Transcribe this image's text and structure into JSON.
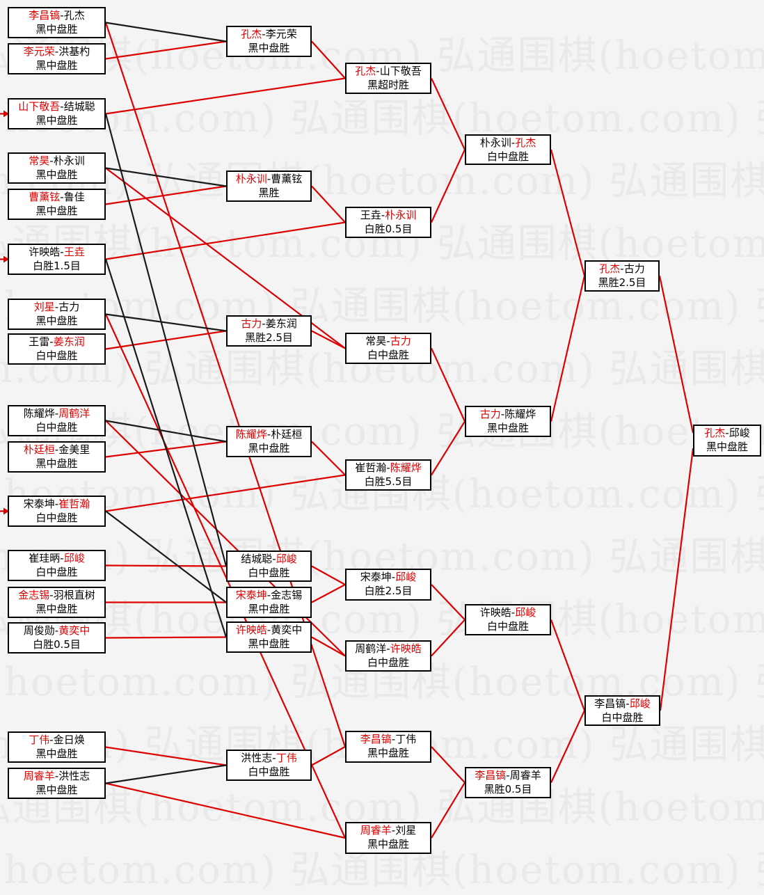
{
  "watermark": {
    "text": "弘通围棋(hoetom.com)",
    "color": "#e9e9e9"
  },
  "colors": {
    "background": "#f4f4f4",
    "winner_name": "#dd0000",
    "advance_line": "#dd0000",
    "drop_line": "#1a1a1a",
    "box_border": "#000000"
  },
  "dash": "-",
  "rounds": [
    {
      "label": "round-1",
      "count": 16
    },
    {
      "label": "round-2-deciders",
      "count": 8
    },
    {
      "label": "round-of-16",
      "count": 8
    },
    {
      "label": "quarterfinals",
      "count": 4
    },
    {
      "label": "semifinals",
      "count": 2
    },
    {
      "label": "final",
      "count": 1
    }
  ],
  "matches": [
    {
      "id": "c1m1",
      "round": 1,
      "p1": "李昌镐",
      "p2": "孔杰",
      "winner": 1,
      "result": "黑中盘胜"
    },
    {
      "id": "c1m2",
      "round": 1,
      "p1": "李元荣",
      "p2": "洪基杓",
      "winner": 1,
      "result": "黑中盘胜"
    },
    {
      "id": "c1m3",
      "round": 1,
      "p1": "山下敬吾",
      "p2": "结城聪",
      "winner": 1,
      "result": "黑中盘胜"
    },
    {
      "id": "c1m4",
      "round": 1,
      "p1": "常昊",
      "p2": "朴永训",
      "winner": 1,
      "result": "黑中盘胜"
    },
    {
      "id": "c1m5",
      "round": 1,
      "p1": "曹薰铉",
      "p2": "鲁佳",
      "winner": 1,
      "result": "黑中盘胜"
    },
    {
      "id": "c1m6",
      "round": 1,
      "p1": "许映皓",
      "p2": "王垚",
      "winner": 2,
      "result": "白胜1.5目"
    },
    {
      "id": "c1m7",
      "round": 1,
      "p1": "刘星",
      "p2": "古力",
      "winner": 1,
      "result": "黑中盘胜"
    },
    {
      "id": "c1m8",
      "round": 1,
      "p1": "王雷",
      "p2": "姜东润",
      "winner": 2,
      "result": "白中盘胜"
    },
    {
      "id": "c1m9",
      "round": 1,
      "p1": "陈耀烨",
      "p2": "周鹤洋",
      "winner": 2,
      "result": "白中盘胜"
    },
    {
      "id": "c1m10",
      "round": 1,
      "p1": "朴廷桓",
      "p2": "金美里",
      "winner": 1,
      "result": "黑中盘胜"
    },
    {
      "id": "c1m11",
      "round": 1,
      "p1": "宋泰坤",
      "p2": "崔哲瀚",
      "winner": 2,
      "result": "白中盘胜"
    },
    {
      "id": "c1m12",
      "round": 1,
      "p1": "崔珪昞",
      "p2": "邱峻",
      "winner": 2,
      "result": "白中盘胜"
    },
    {
      "id": "c1m13",
      "round": 1,
      "p1": "金志锡",
      "p2": "羽根直树",
      "winner": 1,
      "result": "黑中盘胜"
    },
    {
      "id": "c1m14",
      "round": 1,
      "p1": "周俊勋",
      "p2": "黄奕中",
      "winner": 2,
      "result": "白胜0.5目"
    },
    {
      "id": "c1m15",
      "round": 1,
      "p1": "丁伟",
      "p2": "金日焕",
      "winner": 1,
      "result": "黑中盘胜"
    },
    {
      "id": "c1m16",
      "round": 1,
      "p1": "周睿羊",
      "p2": "洪性志",
      "winner": 1,
      "result": "黑中盘胜"
    },
    {
      "id": "c2m1",
      "round": 2,
      "p1": "孔杰",
      "p2": "李元荣",
      "winner": 1,
      "result": "黑中盘胜"
    },
    {
      "id": "c2m2",
      "round": 2,
      "p1": "朴永训",
      "p2": "曹薰铉",
      "winner": 1,
      "result": "黑胜"
    },
    {
      "id": "c2m3",
      "round": 2,
      "p1": "古力",
      "p2": "姜东润",
      "winner": 1,
      "result": "黑胜2.5目"
    },
    {
      "id": "c2m4",
      "round": 2,
      "p1": "陈耀烨",
      "p2": "朴廷桓",
      "winner": 1,
      "result": "黑中盘胜"
    },
    {
      "id": "c2m5",
      "round": 2,
      "p1": "结城聪",
      "p2": "邱峻",
      "winner": 2,
      "result": "白中盘胜"
    },
    {
      "id": "c2m6",
      "round": 2,
      "p1": "宋泰坤",
      "p2": "金志锡",
      "winner": 1,
      "result": "黑中盘胜"
    },
    {
      "id": "c2m7",
      "round": 2,
      "p1": "许映皓",
      "p2": "黄奕中",
      "winner": 1,
      "result": "黑中盘胜"
    },
    {
      "id": "c2m8",
      "round": 2,
      "p1": "洪性志",
      "p2": "丁伟",
      "winner": 2,
      "result": "白中盘胜"
    },
    {
      "id": "c3m1",
      "round": 3,
      "p1": "孔杰",
      "p2": "山下敬吾",
      "winner": 1,
      "result": "黑超时胜"
    },
    {
      "id": "c3m2",
      "round": 3,
      "p1": "王垚",
      "p2": "朴永训",
      "winner": 2,
      "result": "白胜0.5目"
    },
    {
      "id": "c3m3",
      "round": 3,
      "p1": "常昊",
      "p2": "古力",
      "winner": 2,
      "result": "白中盘胜"
    },
    {
      "id": "c3m4",
      "round": 3,
      "p1": "崔哲瀚",
      "p2": "陈耀烨",
      "winner": 2,
      "result": "白胜5.5目"
    },
    {
      "id": "c3m5",
      "round": 3,
      "p1": "宋泰坤",
      "p2": "邱峻",
      "winner": 2,
      "result": "白胜2.5目"
    },
    {
      "id": "c3m6",
      "round": 3,
      "p1": "周鹤洋",
      "p2": "许映皓",
      "winner": 2,
      "result": "白中盘胜"
    },
    {
      "id": "c3m7",
      "round": 3,
      "p1": "李昌镐",
      "p2": "丁伟",
      "winner": 1,
      "result": "黑中盘胜"
    },
    {
      "id": "c3m8",
      "round": 3,
      "p1": "周睿羊",
      "p2": "刘星",
      "winner": 1,
      "result": "黑中盘胜"
    },
    {
      "id": "c4m1",
      "round": 4,
      "p1": "朴永训",
      "p2": "孔杰",
      "winner": 2,
      "result": "白中盘胜"
    },
    {
      "id": "c4m2",
      "round": 4,
      "p1": "古力",
      "p2": "陈耀烨",
      "winner": 1,
      "result": "黑中盘胜"
    },
    {
      "id": "c4m3",
      "round": 4,
      "p1": "许映皓",
      "p2": "邱峻",
      "winner": 2,
      "result": "白中盘胜"
    },
    {
      "id": "c4m4",
      "round": 4,
      "p1": "李昌镐",
      "p2": "周睿羊",
      "winner": 1,
      "result": "黑胜0.5目"
    },
    {
      "id": "c5m1",
      "round": 5,
      "p1": "孔杰",
      "p2": "古力",
      "winner": 1,
      "result": "黑胜2.5目"
    },
    {
      "id": "c5m2",
      "round": 5,
      "p1": "李昌镐",
      "p2": "邱峻",
      "winner": 2,
      "result": "白中盘胜"
    },
    {
      "id": "c6m1",
      "round": 6,
      "p1": "孔杰",
      "p2": "邱峻",
      "winner": 1,
      "result": "黑中盘胜"
    }
  ],
  "edges": [
    {
      "from": "c1m1",
      "to": "c3m7",
      "type": "advance"
    },
    {
      "from": "c1m2",
      "to": "c2m1",
      "type": "advance"
    },
    {
      "from": "c1m3",
      "to": "c3m1",
      "type": "advance"
    },
    {
      "from": "c1m4",
      "to": "c3m3",
      "type": "advance"
    },
    {
      "from": "c1m5",
      "to": "c2m2",
      "type": "advance"
    },
    {
      "from": "c1m6",
      "to": "c3m2",
      "type": "advance"
    },
    {
      "from": "c1m7",
      "to": "c3m8",
      "type": "advance"
    },
    {
      "from": "c1m8",
      "to": "c2m3",
      "type": "advance"
    },
    {
      "from": "c1m9",
      "to": "c3m6",
      "type": "advance"
    },
    {
      "from": "c1m10",
      "to": "c2m4",
      "type": "advance"
    },
    {
      "from": "c1m11",
      "to": "c3m4",
      "type": "advance"
    },
    {
      "from": "c1m12",
      "to": "c2m5",
      "type": "advance"
    },
    {
      "from": "c1m13",
      "to": "c2m6",
      "type": "advance"
    },
    {
      "from": "c1m14",
      "to": "c2m7",
      "type": "advance"
    },
    {
      "from": "c1m15",
      "to": "c2m8",
      "type": "advance"
    },
    {
      "from": "c1m16",
      "to": "c3m8",
      "type": "advance"
    },
    {
      "from": "c1m1",
      "to": "c2m1",
      "type": "drop"
    },
    {
      "from": "c1m3",
      "to": "c2m5",
      "type": "drop"
    },
    {
      "from": "c1m4",
      "to": "c2m2",
      "type": "drop"
    },
    {
      "from": "c1m6",
      "to": "c2m7",
      "type": "drop"
    },
    {
      "from": "c1m7",
      "to": "c2m3",
      "type": "drop"
    },
    {
      "from": "c1m9",
      "to": "c2m4",
      "type": "drop"
    },
    {
      "from": "c1m11",
      "to": "c2m6",
      "type": "drop"
    },
    {
      "from": "c1m16",
      "to": "c2m8",
      "type": "drop"
    },
    {
      "from": "c2m1",
      "to": "c3m1",
      "type": "advance"
    },
    {
      "from": "c2m2",
      "to": "c3m2",
      "type": "advance"
    },
    {
      "from": "c2m3",
      "to": "c3m3",
      "type": "advance"
    },
    {
      "from": "c2m4",
      "to": "c3m4",
      "type": "advance"
    },
    {
      "from": "c2m5",
      "to": "c3m5",
      "type": "advance"
    },
    {
      "from": "c2m6",
      "to": "c3m5",
      "type": "advance"
    },
    {
      "from": "c2m7",
      "to": "c3m6",
      "type": "advance"
    },
    {
      "from": "c2m8",
      "to": "c3m7",
      "type": "advance"
    },
    {
      "from": "c3m1",
      "to": "c4m1",
      "type": "advance"
    },
    {
      "from": "c3m2",
      "to": "c4m1",
      "type": "advance"
    },
    {
      "from": "c3m3",
      "to": "c4m2",
      "type": "advance"
    },
    {
      "from": "c3m4",
      "to": "c4m2",
      "type": "advance"
    },
    {
      "from": "c3m5",
      "to": "c4m3",
      "type": "advance"
    },
    {
      "from": "c3m6",
      "to": "c4m3",
      "type": "advance"
    },
    {
      "from": "c3m7",
      "to": "c4m4",
      "type": "advance"
    },
    {
      "from": "c3m8",
      "to": "c4m4",
      "type": "advance"
    },
    {
      "from": "c4m1",
      "to": "c5m1",
      "type": "advance"
    },
    {
      "from": "c4m2",
      "to": "c5m1",
      "type": "advance"
    },
    {
      "from": "c4m3",
      "to": "c5m2",
      "type": "advance"
    },
    {
      "from": "c4m4",
      "to": "c5m2",
      "type": "advance"
    },
    {
      "from": "c5m1",
      "to": "c6m1",
      "type": "advance"
    },
    {
      "from": "c5m2",
      "to": "c6m1",
      "type": "advance"
    }
  ],
  "entry_arrows": [
    "c1m3",
    "c1m6",
    "c1m11"
  ],
  "champion": "孔杰"
}
